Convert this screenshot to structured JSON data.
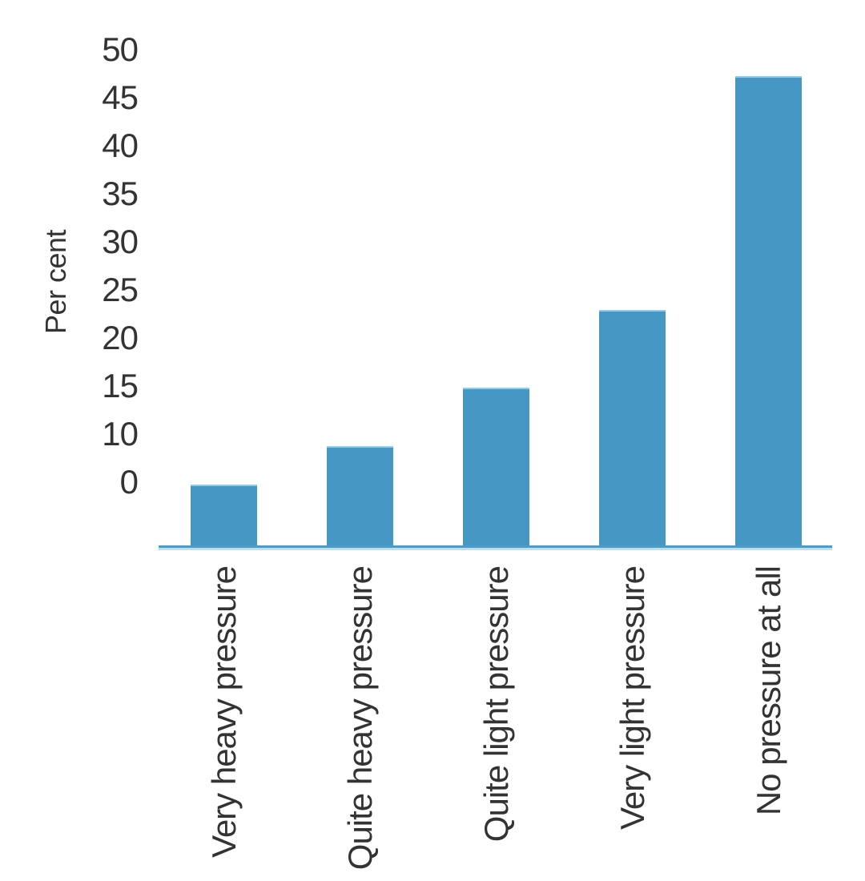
{
  "chart_data": {
    "type": "bar",
    "title": "",
    "xlabel": "",
    "ylabel": "Per cent",
    "categories": [
      "Very heavy pressure",
      "Quite heavy pressure",
      "Quite light pressure",
      "Very light pressure",
      "No pressure at all"
    ],
    "values": [
      5,
      9,
      15,
      23,
      47
    ],
    "y_tick_labels": [
      "50",
      "45",
      "40",
      "35",
      "30",
      "25",
      "20",
      "15",
      "10",
      "0"
    ],
    "ylim": [
      0,
      50
    ],
    "grid": false,
    "legend": false,
    "bar_orientation": "vertical",
    "x_label_rotation_deg": 90,
    "colors": {
      "background": "#FFFFFF",
      "bar": "#4697C3",
      "bar_top_edge": "#9BC9E0",
      "axis_line": "#4C9BC8",
      "axis_line_light": "#B7E0F2",
      "text": "#333333"
    }
  }
}
